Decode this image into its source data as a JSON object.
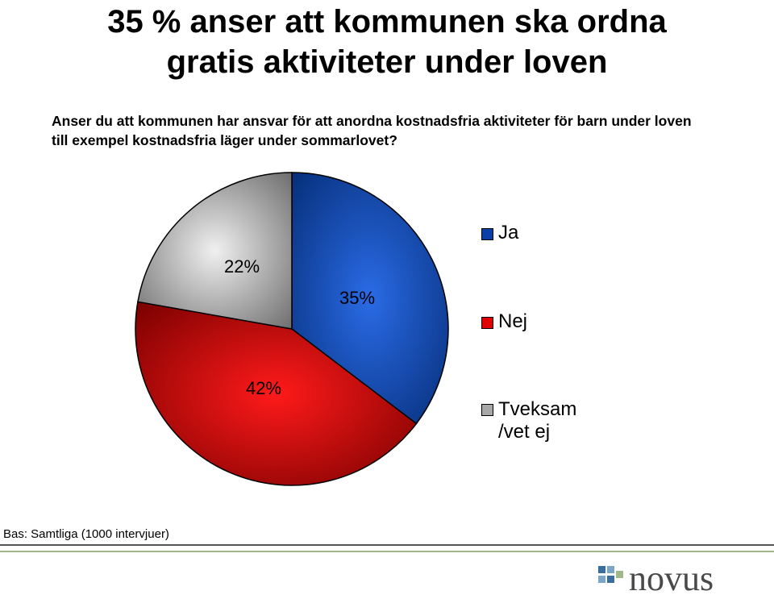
{
  "title_line1": "35 % anser att kommunen ska ordna",
  "title_line2": "gratis aktiviteter under loven",
  "question_line1": "Anser du att kommunen har ansvar för att anordna kostnadsfria aktiviteter för barn under loven",
  "question_line2": "till exempel kostnadsfria läger under sommarlovet?",
  "base_note": "Bas: Samtliga (1000 intervjuer)",
  "logo_text": "novus",
  "colors": {
    "ja": "#0b3fa8",
    "nej": "#e00000",
    "tveksam": "#a8a8a8",
    "rule_green": "#9fb98a"
  },
  "chart_data": {
    "type": "pie",
    "slices": [
      {
        "label": "Ja",
        "value": 35,
        "display": "35%"
      },
      {
        "label": "Nej",
        "value": 42,
        "display": "42%"
      },
      {
        "label_line1": "Tveksam",
        "label_line2": "/vet ej",
        "value": 22,
        "display": "22%"
      }
    ],
    "legend_position": "right"
  }
}
